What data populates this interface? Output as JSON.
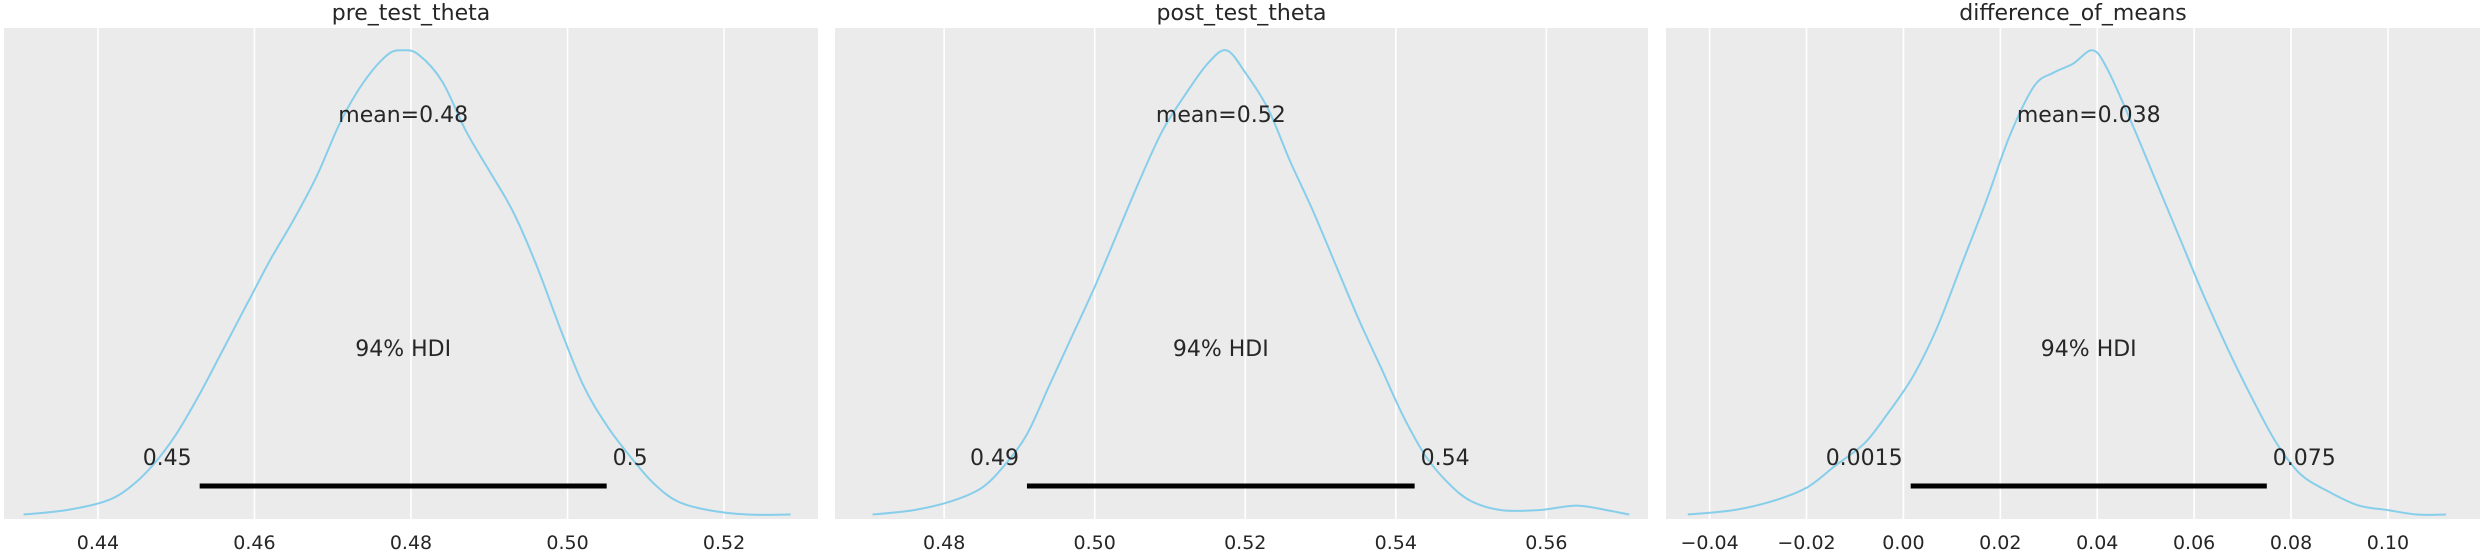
{
  "style": {
    "curve_color": "#87ceeb",
    "panel_bg": "#ebebeb",
    "grid_color": "#ffffff",
    "hdi_color": "#000000"
  },
  "chart_data": [
    {
      "type": "posterior-density",
      "title": "pre_test_theta",
      "mean_label": "mean=0.48",
      "hdi_label": "94% HDI",
      "hdi_lower_label": "0.45",
      "hdi_upper_label": "0.5",
      "hdi": [
        0.453,
        0.505
      ],
      "xlim": [
        0.428,
        0.532
      ],
      "xticks": [
        0.44,
        0.46,
        0.48,
        0.5,
        0.52
      ],
      "xtick_labels": [
        "0.44",
        "0.46",
        "0.48",
        "0.50",
        "0.52"
      ],
      "ylim": [
        0,
        1.1
      ],
      "density": {
        "x": [
          0.4305,
          0.436,
          0.441,
          0.444,
          0.447,
          0.45,
          0.453,
          0.456,
          0.459,
          0.462,
          0.465,
          0.468,
          0.471,
          0.474,
          0.477,
          0.479,
          0.481,
          0.484,
          0.487,
          0.49,
          0.493,
          0.496,
          0.499,
          0.502,
          0.505,
          0.508,
          0.511,
          0.514,
          0.518,
          0.523,
          0.5285
        ],
        "y": [
          0.01,
          0.02,
          0.04,
          0.07,
          0.12,
          0.19,
          0.28,
          0.38,
          0.48,
          0.58,
          0.67,
          0.77,
          0.89,
          0.98,
          1.04,
          1.05,
          1.04,
          0.98,
          0.87,
          0.78,
          0.69,
          0.57,
          0.43,
          0.3,
          0.21,
          0.14,
          0.08,
          0.04,
          0.02,
          0.01,
          0.01
        ]
      }
    },
    {
      "type": "posterior-density",
      "title": "post_test_theta",
      "mean_label": "mean=0.52",
      "hdi_label": "94% HDI",
      "hdi_lower_label": "0.49",
      "hdi_upper_label": "0.54",
      "hdi": [
        0.491,
        0.5425
      ],
      "xlim": [
        0.4655,
        0.5735
      ],
      "xticks": [
        0.48,
        0.5,
        0.52,
        0.54,
        0.56
      ],
      "xtick_labels": [
        "0.48",
        "0.50",
        "0.52",
        "0.54",
        "0.56"
      ],
      "ylim": [
        0,
        1.1
      ],
      "density": {
        "x": [
          0.4705,
          0.476,
          0.481,
          0.485,
          0.488,
          0.491,
          0.494,
          0.497,
          0.5,
          0.503,
          0.506,
          0.509,
          0.512,
          0.515,
          0.5175,
          0.52,
          0.523,
          0.526,
          0.529,
          0.532,
          0.535,
          0.538,
          0.541,
          0.544,
          0.547,
          0.55,
          0.554,
          0.559,
          0.564,
          0.568,
          0.571
        ],
        "y": [
          0.01,
          0.02,
          0.04,
          0.07,
          0.12,
          0.19,
          0.3,
          0.41,
          0.52,
          0.64,
          0.76,
          0.87,
          0.95,
          1.02,
          1.05,
          1.0,
          0.92,
          0.8,
          0.69,
          0.57,
          0.45,
          0.34,
          0.23,
          0.14,
          0.08,
          0.04,
          0.02,
          0.02,
          0.03,
          0.02,
          0.01
        ]
      }
    },
    {
      "type": "posterior-density",
      "title": "difference_of_means",
      "mean_label": "mean=0.038",
      "hdi_label": "94% HDI",
      "hdi_lower_label": "0.0015",
      "hdi_upper_label": "0.075",
      "hdi": [
        0.0015,
        0.075
      ],
      "xlim": [
        -0.049,
        0.119
      ],
      "xticks": [
        -0.04,
        -0.02,
        0.0,
        0.02,
        0.04,
        0.06,
        0.08,
        0.1
      ],
      "xtick_labels": [
        "−0.04",
        "−0.02",
        "0.00",
        "0.02",
        "0.04",
        "0.06",
        "0.08",
        "0.10"
      ],
      "ylim": [
        0,
        1.1
      ],
      "density": {
        "x": [
          -0.0445,
          -0.035,
          -0.027,
          -0.02,
          -0.014,
          -0.008,
          -0.003,
          0.002,
          0.007,
          0.012,
          0.017,
          0.022,
          0.027,
          0.031,
          0.035,
          0.039,
          0.042,
          0.047,
          0.052,
          0.057,
          0.062,
          0.067,
          0.072,
          0.077,
          0.082,
          0.088,
          0.094,
          0.1,
          0.106,
          0.112
        ],
        "y": [
          0.01,
          0.02,
          0.04,
          0.07,
          0.12,
          0.17,
          0.24,
          0.32,
          0.43,
          0.57,
          0.71,
          0.86,
          0.97,
          1.0,
          1.02,
          1.05,
          1.01,
          0.89,
          0.76,
          0.63,
          0.5,
          0.38,
          0.27,
          0.17,
          0.1,
          0.06,
          0.03,
          0.02,
          0.01,
          0.01
        ]
      }
    }
  ]
}
